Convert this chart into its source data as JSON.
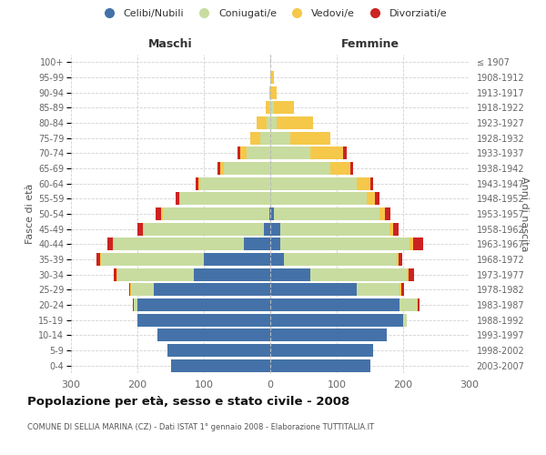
{
  "age_groups": [
    "0-4",
    "5-9",
    "10-14",
    "15-19",
    "20-24",
    "25-29",
    "30-34",
    "35-39",
    "40-44",
    "45-49",
    "50-54",
    "55-59",
    "60-64",
    "65-69",
    "70-74",
    "75-79",
    "80-84",
    "85-89",
    "90-94",
    "95-99",
    "100+"
  ],
  "birth_years": [
    "2003-2007",
    "1998-2002",
    "1993-1997",
    "1988-1992",
    "1983-1987",
    "1978-1982",
    "1973-1977",
    "1968-1972",
    "1963-1967",
    "1958-1962",
    "1953-1957",
    "1948-1952",
    "1943-1947",
    "1938-1942",
    "1933-1937",
    "1928-1932",
    "1923-1927",
    "1918-1922",
    "1913-1917",
    "1908-1912",
    "≤ 1907"
  ],
  "colors": {
    "celibi": "#4472a8",
    "coniugati": "#c8dca0",
    "vedovi": "#f5c84a",
    "divorziati": "#cc2222"
  },
  "male": {
    "celibi": [
      150,
      155,
      170,
      200,
      200,
      175,
      115,
      100,
      40,
      10,
      2,
      0,
      0,
      0,
      0,
      0,
      0,
      0,
      0,
      0,
      0
    ],
    "coniugati": [
      0,
      0,
      0,
      0,
      5,
      35,
      115,
      155,
      195,
      180,
      160,
      135,
      105,
      70,
      35,
      15,
      5,
      2,
      0,
      0,
      0
    ],
    "vedovi": [
      0,
      0,
      0,
      0,
      1,
      1,
      1,
      1,
      2,
      2,
      2,
      2,
      3,
      5,
      10,
      15,
      15,
      5,
      2,
      0,
      0
    ],
    "divorziati": [
      0,
      0,
      0,
      0,
      1,
      2,
      5,
      5,
      8,
      8,
      8,
      5,
      5,
      5,
      5,
      0,
      0,
      0,
      0,
      0,
      0
    ]
  },
  "female": {
    "nubili": [
      150,
      155,
      175,
      200,
      195,
      130,
      60,
      20,
      15,
      15,
      5,
      0,
      0,
      0,
      0,
      0,
      0,
      0,
      0,
      0,
      0
    ],
    "coniugati": [
      0,
      0,
      0,
      5,
      25,
      65,
      145,
      170,
      195,
      165,
      160,
      145,
      130,
      90,
      60,
      30,
      10,
      5,
      0,
      0,
      0
    ],
    "vedovi": [
      0,
      0,
      0,
      1,
      2,
      2,
      3,
      3,
      5,
      5,
      8,
      12,
      20,
      30,
      50,
      60,
      55,
      30,
      10,
      5,
      0
    ],
    "divorziati": [
      0,
      0,
      0,
      0,
      2,
      5,
      8,
      5,
      15,
      8,
      8,
      8,
      5,
      5,
      5,
      0,
      0,
      0,
      0,
      0,
      0
    ]
  },
  "xlim": 300,
  "title": "Popolazione per età, sesso e stato civile - 2008",
  "subtitle": "COMUNE DI SELLIA MARINA (CZ) - Dati ISTAT 1° gennaio 2008 - Elaborazione TUTTITALIA.IT",
  "xlabel_left": "Maschi",
  "xlabel_right": "Femmine",
  "ylabel_left": "Fasce di età",
  "ylabel_right": "Anni di nascita",
  "legend_labels": [
    "Celibi/Nubili",
    "Coniugati/e",
    "Vedovi/e",
    "Divorziati/e"
  ],
  "background_color": "#ffffff",
  "grid_color": "#cccccc"
}
